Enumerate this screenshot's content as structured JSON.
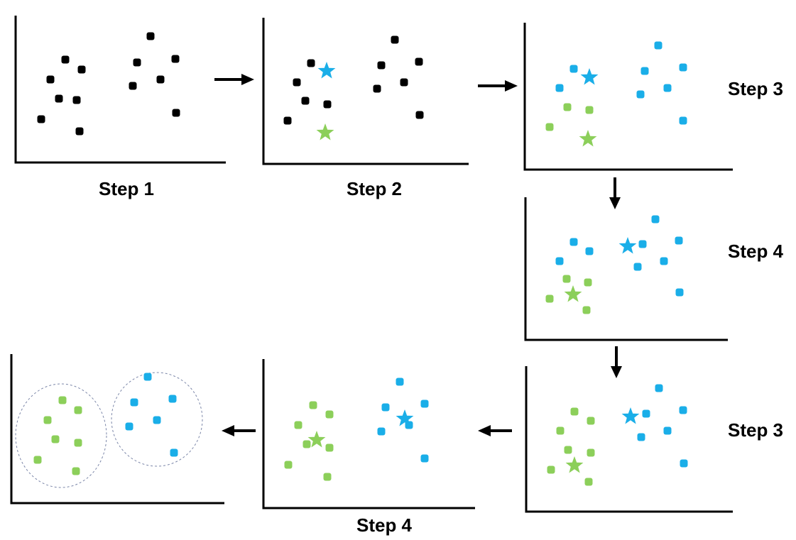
{
  "title": "",
  "colors": {
    "black": "#000000",
    "green": "#8ccf5a",
    "blue": "#1aaee8",
    "ellipse": "#7b86a8"
  },
  "labels": {
    "p1": "Step 1",
    "p2": "Step 2",
    "p3": "Step 3",
    "p4": "Step 4",
    "p5": "Step 3",
    "p6": "Step 4"
  },
  "panels": [
    {
      "id": "p1",
      "content": "all points uncolored"
    },
    {
      "id": "p2",
      "content": "two centroids placed"
    },
    {
      "id": "p3",
      "content": "points assigned to nearest centroid"
    },
    {
      "id": "p4",
      "content": "centroids moved to cluster means"
    },
    {
      "id": "p5",
      "content": "points reassigned"
    },
    {
      "id": "p6",
      "content": "centroids moved again"
    },
    {
      "id": "p7",
      "content": "final two clusters"
    }
  ],
  "icons": {
    "point": "square-dot-icon",
    "centroid": "star-icon",
    "arrow": "arrow-icon"
  }
}
